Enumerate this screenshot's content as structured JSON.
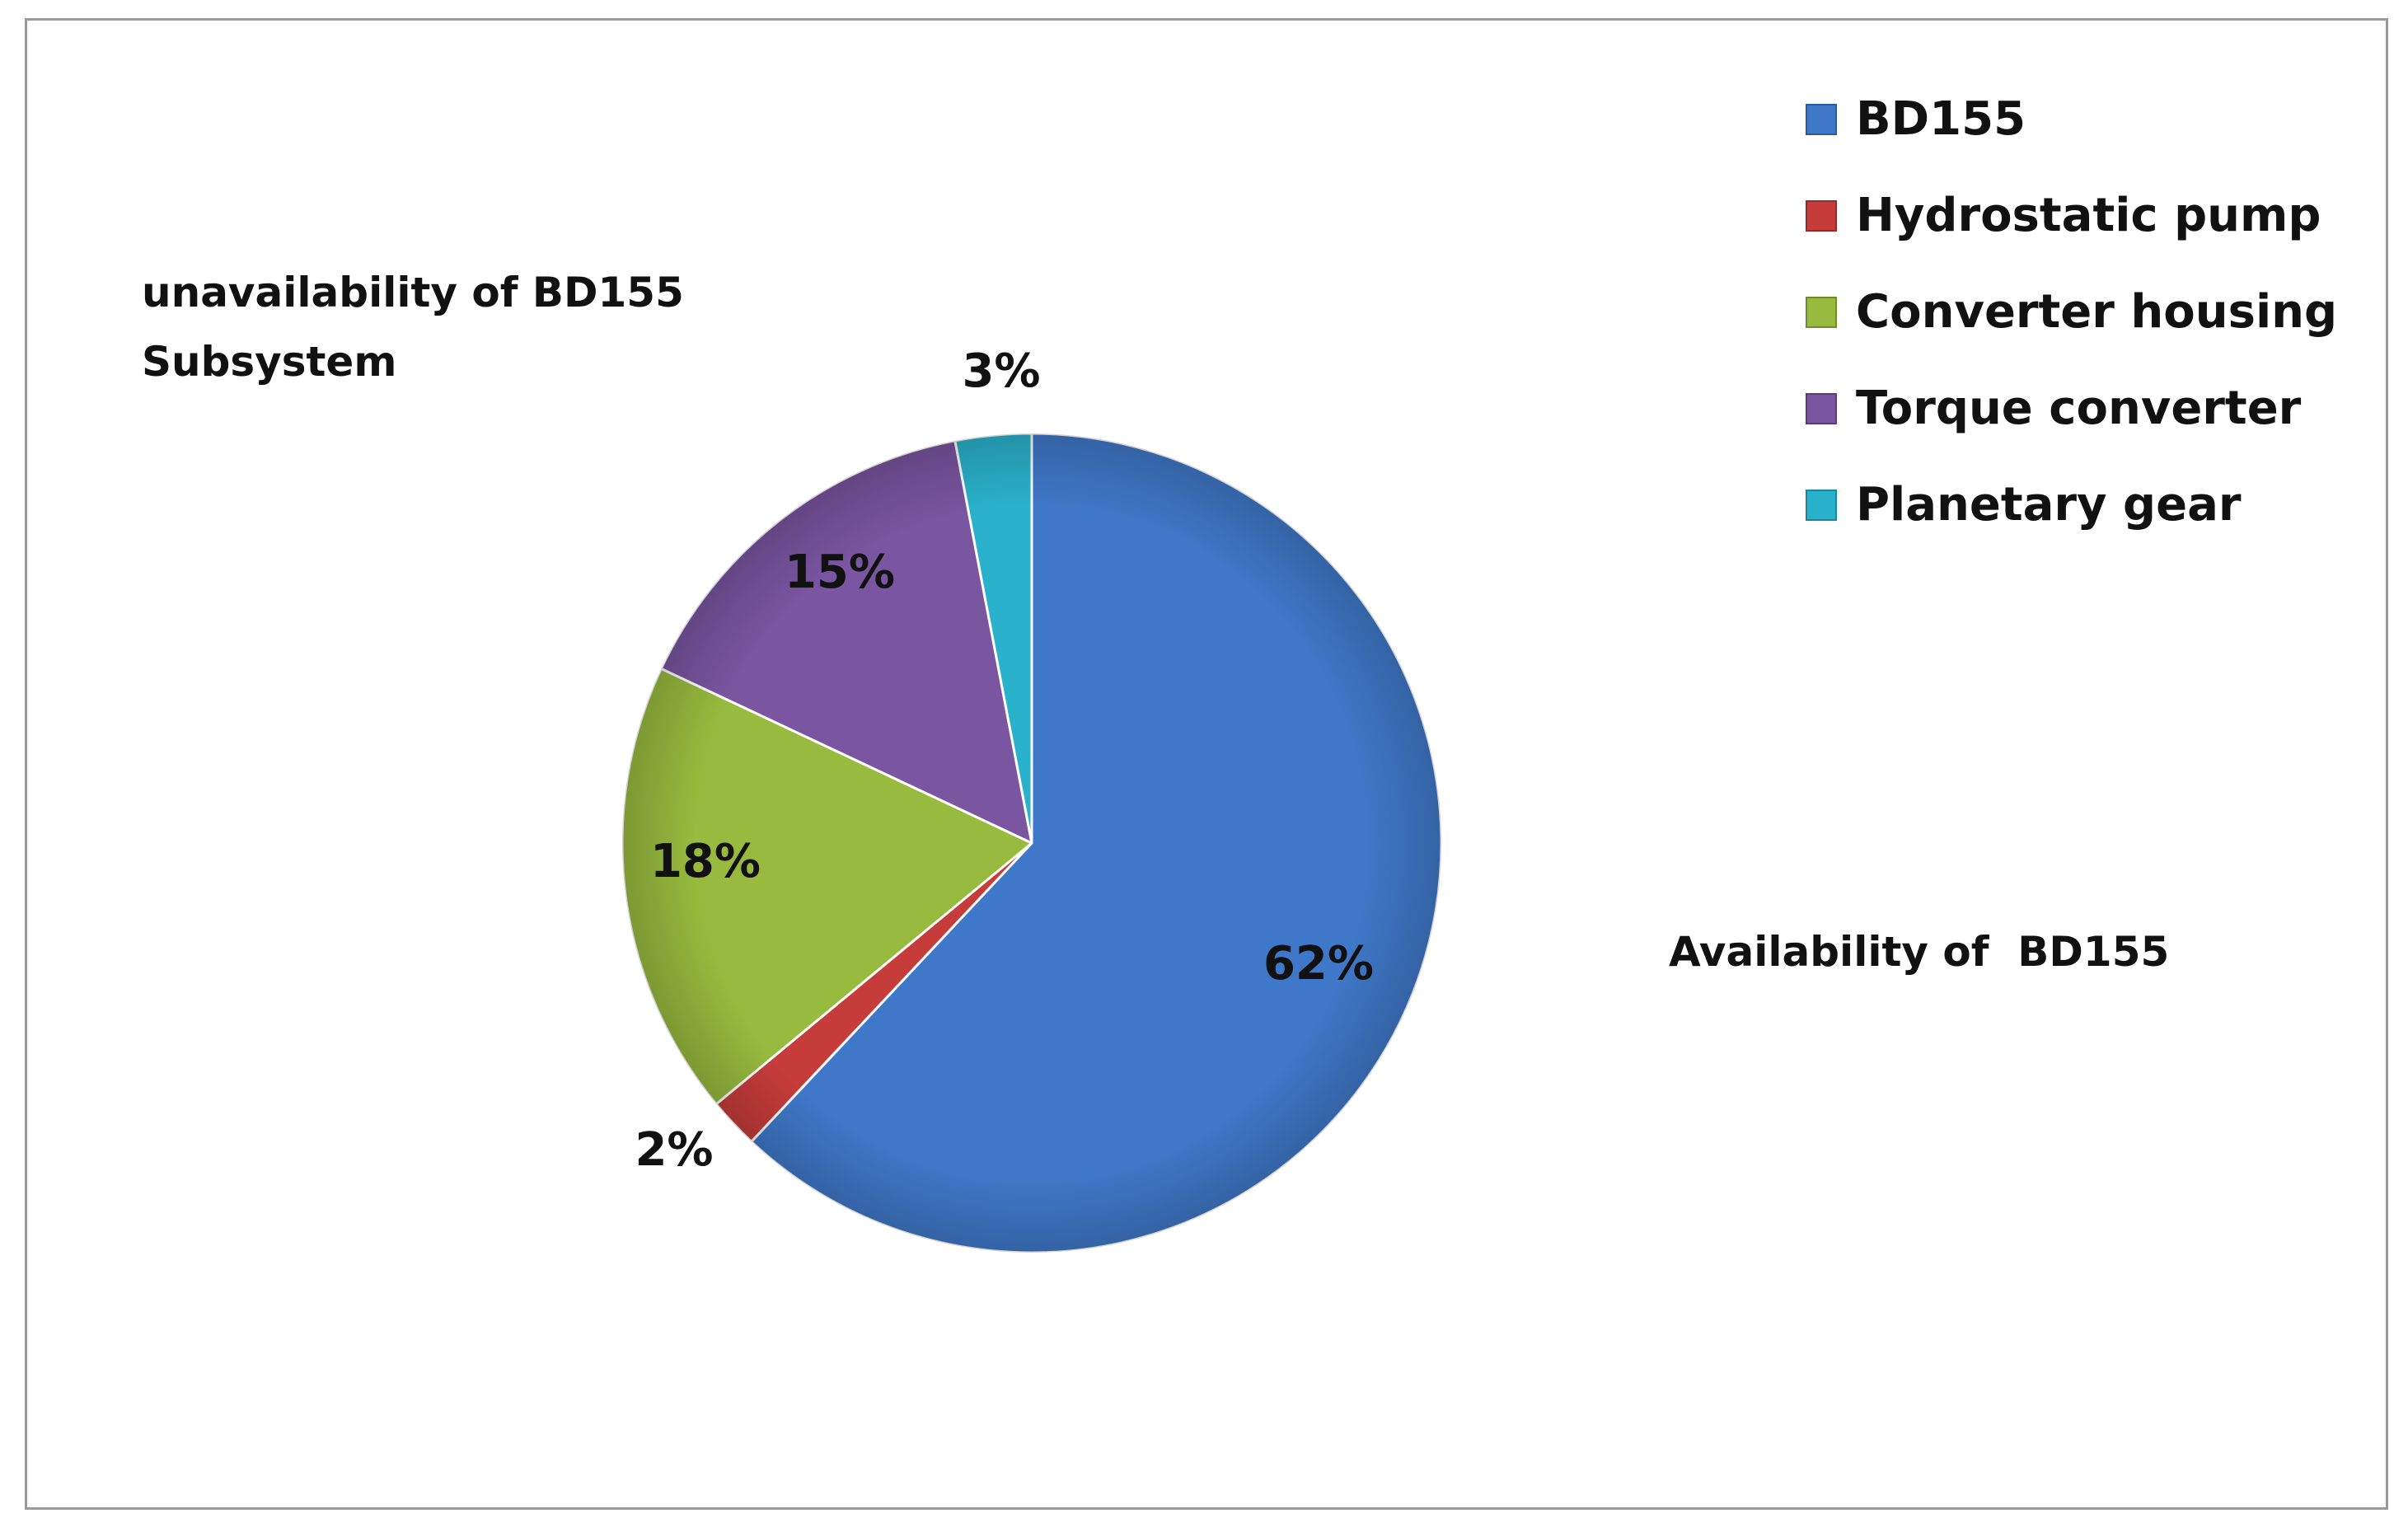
{
  "chart_data": {
    "type": "pie",
    "categories": [
      "BD155",
      "Hydrostatic pump",
      "Converter housing",
      "Torque converter",
      "Planetary gear"
    ],
    "values": [
      62,
      2,
      18,
      15,
      3
    ],
    "data_labels": [
      "62%",
      "2%",
      "18%",
      "15%",
      "3%"
    ],
    "colors": [
      "#3f78c8",
      "#c63c3a",
      "#98ba3e",
      "#7a55a0",
      "#2ab2cc"
    ],
    "start_angle_deg": 0,
    "direction": "clockwise",
    "legend": {
      "placement": "top-right",
      "entries": [
        "BD155",
        "Hydrostatic pump",
        "Converter housing",
        "Torque converter",
        "Planetary gear"
      ]
    },
    "annotations": {
      "unavailability_line1": "unavailability of BD155",
      "unavailability_line2": "Subsystem",
      "availability": "Availability of  BD155"
    }
  }
}
